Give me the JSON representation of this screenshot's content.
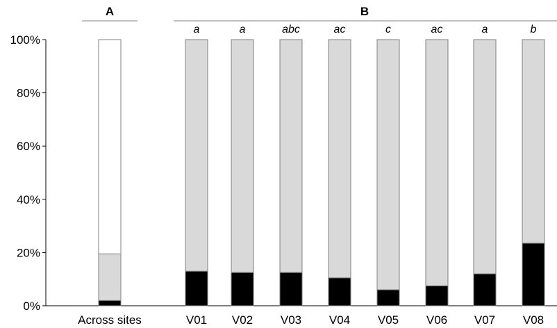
{
  "chart_data": {
    "type": "bar",
    "stacked": true,
    "ylim": [
      0,
      100
    ],
    "yticks": [
      "0%",
      "20%",
      "40%",
      "60%",
      "80%",
      "100%"
    ],
    "panels": [
      {
        "label": "A"
      },
      {
        "label": "B"
      }
    ],
    "colors": {
      "bottom": "#000000",
      "middle": "#d9d9d9",
      "top": "#ffffff",
      "outline": "#808080"
    },
    "categories": [
      "Across sites",
      "V01",
      "V02",
      "V03",
      "V04",
      "V05",
      "V06",
      "V07",
      "V08"
    ],
    "significance": [
      "",
      "a",
      "a",
      "abc",
      "ac",
      "c",
      "ac",
      "a",
      "b"
    ],
    "series": [
      {
        "values": [
          2,
          13,
          12.5,
          12.5,
          10.5,
          6,
          7.5,
          12,
          23.5
        ]
      },
      {
        "values": [
          17.5,
          87,
          87.5,
          87.5,
          89.5,
          94,
          92.5,
          88,
          76.5
        ]
      },
      {
        "values": [
          80.5,
          0,
          0,
          0,
          0,
          0,
          0,
          0,
          0
        ]
      }
    ]
  }
}
